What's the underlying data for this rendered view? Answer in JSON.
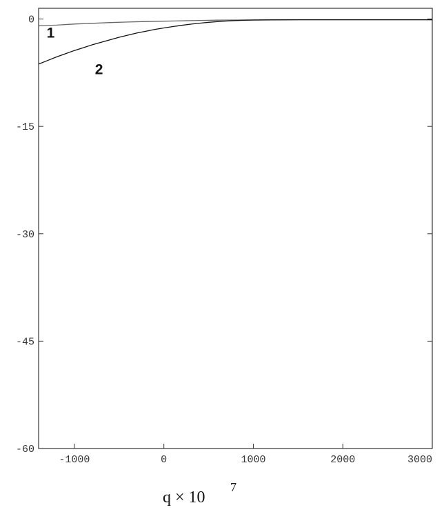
{
  "chart_data": {
    "type": "line",
    "xlabel": {
      "base": "q × 10",
      "exponent": "7"
    },
    "ylabel": "",
    "xlim": [
      -1400,
      3000
    ],
    "ylim": [
      -60,
      1.5
    ],
    "x_ticks": [
      {
        "value": -1000,
        "label": "-1000"
      },
      {
        "value": 0,
        "label": "0"
      },
      {
        "value": 1000,
        "label": "1000"
      },
      {
        "value": 2000,
        "label": "2000"
      },
      {
        "value": 3000,
        "label": "3000"
      }
    ],
    "y_ticks": [
      {
        "value": 0,
        "label": "0"
      },
      {
        "value": -15,
        "label": "-15"
      },
      {
        "value": -30,
        "label": "-30"
      },
      {
        "value": -45,
        "label": "-45"
      },
      {
        "value": -60,
        "label": "-60"
      }
    ],
    "grid": false,
    "series": [
      {
        "name": "1",
        "color": "#666666",
        "label_at": {
          "x": -1310,
          "y": -2.6
        },
        "points": [
          [
            -1400,
            -0.95
          ],
          [
            -1300,
            -0.9
          ],
          [
            -1200,
            -0.85
          ],
          [
            -1000,
            -0.7
          ],
          [
            -800,
            -0.6
          ],
          [
            -600,
            -0.5
          ],
          [
            -400,
            -0.42
          ],
          [
            -200,
            -0.35
          ],
          [
            0,
            -0.3
          ],
          [
            200,
            -0.25
          ],
          [
            400,
            -0.2
          ],
          [
            600,
            -0.16
          ],
          [
            800,
            -0.14
          ],
          [
            1000,
            -0.12
          ],
          [
            1500,
            -0.1
          ],
          [
            2000,
            -0.1
          ],
          [
            2500,
            -0.1
          ],
          [
            3000,
            -0.1
          ]
        ]
      },
      {
        "name": "2",
        "color": "#111111",
        "label_at": {
          "x": -770,
          "y": -7.7
        },
        "points": [
          [
            -1400,
            -6.3
          ],
          [
            -1300,
            -5.8
          ],
          [
            -1200,
            -5.3
          ],
          [
            -1100,
            -4.85
          ],
          [
            -1000,
            -4.4
          ],
          [
            -900,
            -4.0
          ],
          [
            -800,
            -3.6
          ],
          [
            -700,
            -3.25
          ],
          [
            -600,
            -2.9
          ],
          [
            -500,
            -2.55
          ],
          [
            -400,
            -2.25
          ],
          [
            -300,
            -1.95
          ],
          [
            -200,
            -1.7
          ],
          [
            -100,
            -1.45
          ],
          [
            0,
            -1.25
          ],
          [
            100,
            -1.05
          ],
          [
            200,
            -0.88
          ],
          [
            300,
            -0.72
          ],
          [
            400,
            -0.58
          ],
          [
            500,
            -0.46
          ],
          [
            600,
            -0.36
          ],
          [
            700,
            -0.28
          ],
          [
            800,
            -0.22
          ],
          [
            900,
            -0.18
          ],
          [
            1000,
            -0.15
          ],
          [
            1200,
            -0.12
          ],
          [
            1500,
            -0.1
          ],
          [
            2000,
            -0.1
          ],
          [
            3000,
            -0.1
          ]
        ]
      }
    ]
  }
}
